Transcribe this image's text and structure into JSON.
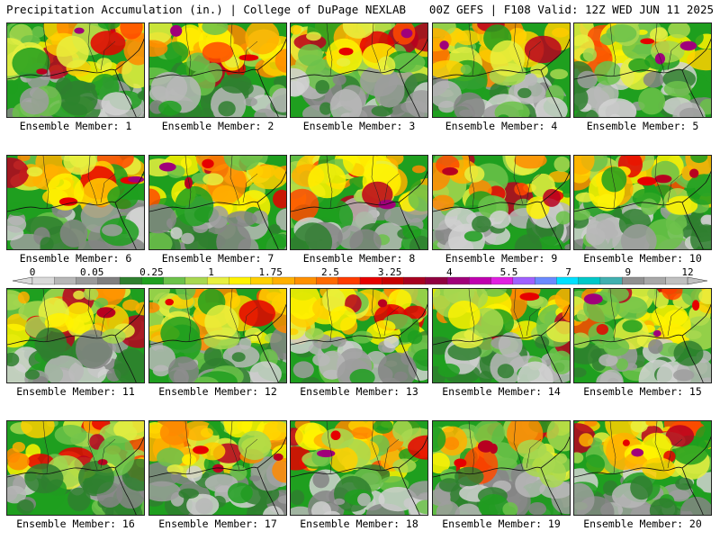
{
  "header": {
    "title": "Precipitation Accumulation (in.) | College of DuPage NEXLAB",
    "valid": "00Z GEFS | F108 Valid: 12Z WED JUN 11 2025"
  },
  "colorbar": {
    "ticks": [
      "0",
      "0.05",
      "0.25",
      "1",
      "1.75",
      "2.5",
      "3.25",
      "4",
      "5.5",
      "7",
      "9",
      "12"
    ],
    "colors": [
      "#d9d9d9",
      "#b7b7b7",
      "#9a9a9a",
      "#7f7f7f",
      "#2f7f2f",
      "#1f9f1f",
      "#6cc24a",
      "#a8d850",
      "#e8f040",
      "#fff300",
      "#ffd000",
      "#ffb000",
      "#ff9000",
      "#ff6a00",
      "#ff3c00",
      "#e60000",
      "#c80000",
      "#a80020",
      "#900040",
      "#a0007a",
      "#c000b0",
      "#e020e0",
      "#a060ff",
      "#6a8aff",
      "#00e0ff",
      "#00c8c8",
      "#40b0b0",
      "#909090",
      "#a8a8a8",
      "#c0c0c0"
    ]
  },
  "members": [
    {
      "label": "Ensemble Member: 1"
    },
    {
      "label": "Ensemble Member: 2"
    },
    {
      "label": "Ensemble Member: 3"
    },
    {
      "label": "Ensemble Member: 4"
    },
    {
      "label": "Ensemble Member: 5"
    },
    {
      "label": "Ensemble Member: 6"
    },
    {
      "label": "Ensemble Member: 7"
    },
    {
      "label": "Ensemble Member: 8"
    },
    {
      "label": "Ensemble Member: 9"
    },
    {
      "label": "Ensemble Member: 10"
    },
    {
      "label": "Ensemble Member: 11"
    },
    {
      "label": "Ensemble Member: 12"
    },
    {
      "label": "Ensemble Member: 13"
    },
    {
      "label": "Ensemble Member: 14"
    },
    {
      "label": "Ensemble Member: 15"
    },
    {
      "label": "Ensemble Member: 16"
    },
    {
      "label": "Ensemble Member: 17"
    },
    {
      "label": "Ensemble Member: 18"
    },
    {
      "label": "Ensemble Member: 19"
    },
    {
      "label": "Ensemble Member: 20"
    }
  ]
}
